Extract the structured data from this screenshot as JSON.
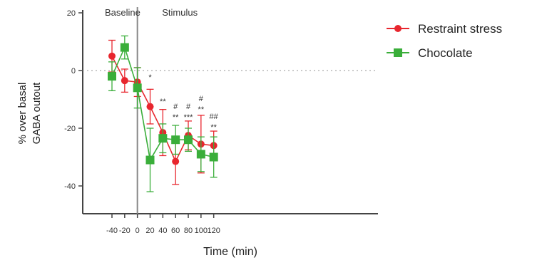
{
  "chart_data": {
    "type": "line",
    "xlabel": "Time (min)",
    "ylabel": [
      "% over basal",
      "GABA outout"
    ],
    "xlim": [
      -60,
      125
    ],
    "ylim": [
      -50,
      20
    ],
    "x_ticks": [
      -40,
      -20,
      0,
      20,
      40,
      60,
      80,
      100,
      120
    ],
    "y_ticks": [
      20,
      0,
      -20,
      -40
    ],
    "reference_line_y": 0,
    "divider_x": 0,
    "phase_labels": [
      {
        "text": "Baseline",
        "x": -30
      },
      {
        "text": "Stimulus",
        "x": 60
      }
    ],
    "legend_position": "top-right",
    "series": [
      {
        "name": "Restraint stress",
        "color": "#e8262e",
        "marker": "circle",
        "x": [
          -40,
          -20,
          0,
          20,
          40,
          60,
          80,
          100,
          120
        ],
        "y": [
          5,
          -3.5,
          -4,
          -12.5,
          -21.5,
          -31.5,
          -22.5,
          -25.5,
          -26
        ],
        "err": [
          5.5,
          4,
          5,
          6,
          8,
          8,
          5,
          10,
          5
        ]
      },
      {
        "name": "Chocolate",
        "color": "#3aae3a",
        "marker": "square",
        "x": [
          -40,
          -20,
          0,
          20,
          40,
          60,
          80,
          100,
          120
        ],
        "y": [
          -2,
          8,
          -6,
          -31,
          -23.5,
          -24,
          -24,
          -29,
          -30
        ],
        "err": [
          5,
          4,
          7,
          11,
          5,
          5,
          4,
          6,
          7
        ]
      }
    ],
    "annotations": [
      {
        "x": 20,
        "rows": [
          "*"
        ]
      },
      {
        "x": 40,
        "rows": [
          "**"
        ]
      },
      {
        "x": 60,
        "rows": [
          "#",
          "**"
        ]
      },
      {
        "x": 80,
        "rows": [
          "#",
          "***"
        ]
      },
      {
        "x": 100,
        "rows": [
          "#",
          "**"
        ]
      },
      {
        "x": 120,
        "rows": [
          "##",
          "**"
        ]
      }
    ]
  }
}
